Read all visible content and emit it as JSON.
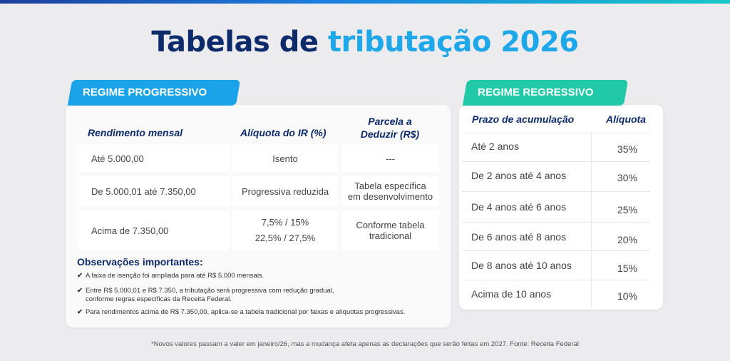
{
  "title": {
    "part1": "Tabelas de ",
    "part2": "tributação 2026"
  },
  "progressive": {
    "tag": "REGIME PROGRESSIVO",
    "headers": [
      "Rendimento mensal",
      "Alíquota do IR (%)",
      "Parcela a",
      "Deduzir (R$)"
    ],
    "rows": [
      {
        "income": "Até 5.000,00",
        "rate": [
          "Isento"
        ],
        "deduct": [
          "---"
        ]
      },
      {
        "income": "De 5.000,01 até 7.350,00",
        "rate": [
          "Progressiva reduzida"
        ],
        "deduct": [
          "Tabela específica",
          "em desenvolvimento"
        ]
      },
      {
        "income": "Acima de 7.350,00",
        "rate": [
          "7,5% / 15%",
          "22,5% / 27,5%"
        ],
        "deduct": [
          "Conforme tabela",
          "tradicional"
        ]
      }
    ],
    "obs_title": "Observações importantes:",
    "obs": [
      [
        "A faixa de isenção foi ampliada para até R$ 5.000 mensais."
      ],
      [
        "Entre R$ 5.000,01 e R$ 7.350, a tributação será progressiva com redução gradual,",
        "conforme regras específicas da Receita Federal."
      ],
      [
        "Para rendimentos acima de R$ 7.350,00, aplica-se a tabela tradicional por faixas e alíquotas progressivas."
      ]
    ],
    "check_icon": "✔"
  },
  "regressive": {
    "tag": "REGIME REGRESSIVO",
    "headers": [
      "Prazo de acumulação",
      "Alíquota"
    ],
    "rows": [
      {
        "term": "Até 2 anos",
        "rate": "35%"
      },
      {
        "term": "De 2 anos até 4 anos",
        "rate": "30%"
      },
      {
        "term": "De 4 anos até 6 anos",
        "rate": "25%"
      },
      {
        "term": "De 6 anos até 8 anos",
        "rate": "20%"
      },
      {
        "term": "De 8 anos até 10 anos",
        "rate": "15%"
      },
      {
        "term": "Acima de 10 anos",
        "rate": "10%"
      }
    ]
  },
  "footnote": "*Novos valores passam a valer em janeiro/26, mas a mudança afeta apenas as declarações que serão feitas em 2027. Fonte: Receita Federal",
  "colors": {
    "navy": "#0d2a6b",
    "blue": "#1ea7e9",
    "teal": "#21c9a8"
  }
}
